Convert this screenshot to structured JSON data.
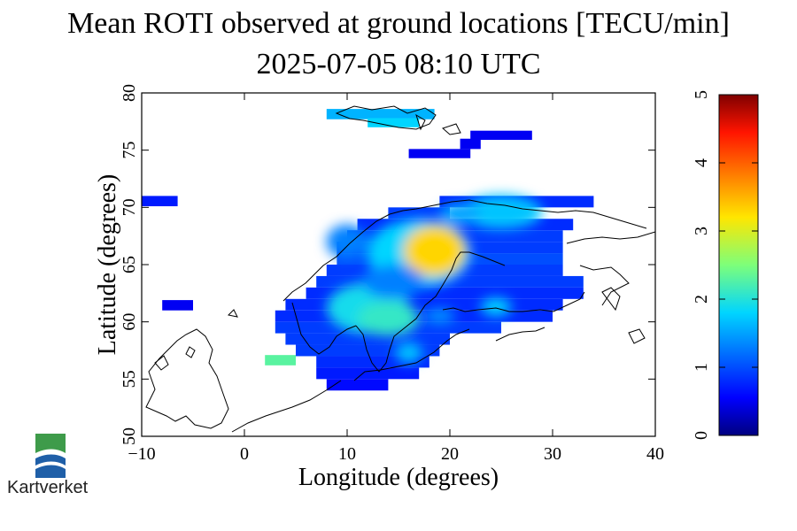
{
  "title": "Mean ROTI observed at ground locations [TECU/min]",
  "subtitle": "2025-07-05 08:10 UTC",
  "logo": {
    "name": "Kartverket"
  },
  "chart_data": {
    "type": "heatmap",
    "title": "Mean ROTI observed at ground locations [TECU/min]",
    "subtitle": "2025-07-05 08:10 UTC",
    "xlabel": "Longitude (degrees)",
    "ylabel": "Latitude (degrees)",
    "xlim": [
      -10,
      40
    ],
    "ylim": [
      50,
      80
    ],
    "xticks": [
      "-10",
      "0",
      "10",
      "20",
      "30",
      "40"
    ],
    "yticks": [
      "50",
      "55",
      "60",
      "65",
      "70",
      "75",
      "80"
    ],
    "colorbar": {
      "min": 0,
      "max": 5,
      "ticks": [
        "0",
        "1",
        "2",
        "3",
        "4",
        "5"
      ]
    },
    "grid": false,
    "cells": [
      {
        "lon0": 8,
        "lon1": 18.5,
        "lat0": 77.7,
        "lat1": 78.6,
        "v": 1.6
      },
      {
        "lon0": 12,
        "lon1": 17,
        "lat0": 77.0,
        "lat1": 77.8,
        "v": 1.8
      },
      {
        "lon0": 22,
        "lon1": 28,
        "lat0": 75.9,
        "lat1": 76.7,
        "v": 0.5
      },
      {
        "lon0": 21,
        "lon1": 23,
        "lat0": 75.1,
        "lat1": 76.0,
        "v": 0.5
      },
      {
        "lon0": 16,
        "lon1": 22,
        "lat0": 74.3,
        "lat1": 75.1,
        "v": 0.5
      },
      {
        "lon0": -10,
        "lon1": -6.5,
        "lat0": 70.1,
        "lat1": 71.0,
        "v": 0.7
      },
      {
        "lon0": -8,
        "lon1": -5,
        "lat0": 61.0,
        "lat1": 61.9,
        "v": 0.5
      },
      {
        "lon0": 2,
        "lon1": 5,
        "lat0": 56.2,
        "lat1": 57.1,
        "v": 2.3
      },
      {
        "lon0": 19,
        "lon1": 34,
        "lat0": 70.0,
        "lat1": 71.0,
        "v": 0.8
      },
      {
        "lon0": 14,
        "lon1": 20,
        "lat0": 69.0,
        "lat1": 70.0,
        "v": 0.9
      },
      {
        "lon0": 11,
        "lon1": 32,
        "lat0": 68.0,
        "lat1": 69.0,
        "v": 0.8
      },
      {
        "lon0": 10,
        "lon1": 31,
        "lat0": 67.0,
        "lat1": 68.0,
        "v": 0.9
      },
      {
        "lon0": 9,
        "lon1": 31,
        "lat0": 66.0,
        "lat1": 67.0,
        "v": 0.9
      },
      {
        "lon0": 9,
        "lon1": 31,
        "lat0": 65.0,
        "lat1": 66.0,
        "v": 1.0
      },
      {
        "lon0": 8,
        "lon1": 31,
        "lat0": 64.0,
        "lat1": 65.0,
        "v": 0.9
      },
      {
        "lon0": 7,
        "lon1": 33,
        "lat0": 63.0,
        "lat1": 64.0,
        "v": 0.9
      },
      {
        "lon0": 6,
        "lon1": 33,
        "lat0": 62.0,
        "lat1": 63.0,
        "v": 0.8
      },
      {
        "lon0": 4,
        "lon1": 31,
        "lat0": 61.0,
        "lat1": 62.0,
        "v": 0.8
      },
      {
        "lon0": 3,
        "lon1": 30,
        "lat0": 60.0,
        "lat1": 61.0,
        "v": 0.8
      },
      {
        "lon0": 3,
        "lon1": 25,
        "lat0": 59.0,
        "lat1": 60.0,
        "v": 0.9
      },
      {
        "lon0": 4,
        "lon1": 20,
        "lat0": 58.0,
        "lat1": 59.0,
        "v": 0.9
      },
      {
        "lon0": 5,
        "lon1": 19,
        "lat0": 57.0,
        "lat1": 58.0,
        "v": 0.9
      },
      {
        "lon0": 7,
        "lon1": 18,
        "lat0": 56.0,
        "lat1": 57.0,
        "v": 0.8
      },
      {
        "lon0": 7,
        "lon1": 17,
        "lat0": 55.0,
        "lat1": 56.0,
        "v": 0.7
      },
      {
        "lon0": 8,
        "lon1": 14,
        "lat0": 54.0,
        "lat1": 55.0,
        "v": 0.6
      }
    ],
    "blobs": [
      {
        "lon": 17,
        "lat": 66.0,
        "rlon": 5,
        "rlat": 3,
        "v": 1.8
      },
      {
        "lon": 18.5,
        "lat": 66.2,
        "rlon": 3,
        "rlat": 2.2,
        "v": 3.3
      },
      {
        "lon": 12,
        "lat": 61.2,
        "rlon": 4,
        "rlat": 2.2,
        "v": 1.9
      },
      {
        "lon": 14,
        "lat": 60.3,
        "rlon": 3,
        "rlat": 1.5,
        "v": 2.1
      },
      {
        "lon": 24.5,
        "lat": 61.3,
        "rlon": 1.5,
        "rlat": 0.8,
        "v": 1.8
      },
      {
        "lon": 25,
        "lat": 69.6,
        "rlon": 4,
        "rlat": 1.5,
        "v": 1.7
      },
      {
        "lon": 21,
        "lat": 69.4,
        "rlon": 2,
        "rlat": 1,
        "v": 1.5
      },
      {
        "lon": 16,
        "lat": 57.3,
        "rlon": 1.3,
        "rlat": 0.9,
        "v": 1.7
      },
      {
        "lon": 14.5,
        "lat": 63.5,
        "rlon": 3,
        "rlat": 1.5,
        "v": 1.3
      },
      {
        "lon": 10,
        "lat": 67,
        "rlon": 2,
        "rlat": 1.5,
        "v": 1.3
      },
      {
        "lon": 19,
        "lat": 60.5,
        "rlon": 1.5,
        "rlat": 0.7,
        "v": 1.4
      }
    ]
  }
}
